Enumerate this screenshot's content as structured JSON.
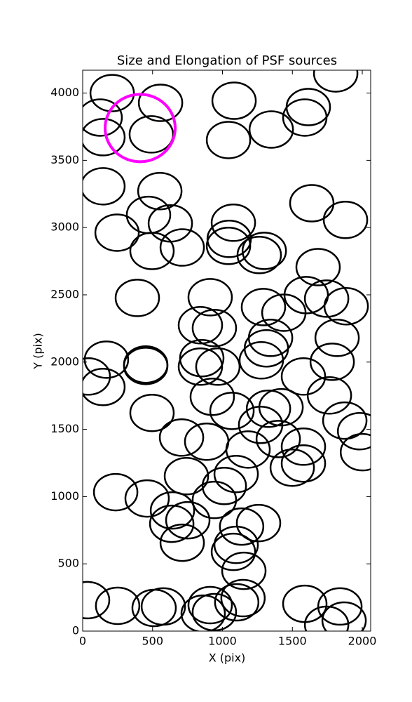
{
  "chart_data": {
    "type": "scatter",
    "title": "Size and Elongation of PSF sources",
    "x_label": "X (pix)",
    "y_label": "Y (pix)",
    "xlim": [
      0,
      2060
    ],
    "ylim": [
      0,
      4170
    ],
    "xticks": [
      0,
      500,
      1000,
      1500,
      2000
    ],
    "yticks": [
      0,
      500,
      1000,
      1500,
      2000,
      2500,
      3000,
      3500,
      4000
    ],
    "series": [
      {
        "color": "#000000",
        "x": [
          211,
          125,
          557,
          145,
          491,
          1083,
          1043,
          1349,
          1614,
          1589,
          1810,
          145,
          552,
          471,
          627,
          246,
          496,
          712,
          1078,
          1048,
          1043,
          1263,
          1299,
          1639,
          1880,
          1684,
          391,
          912,
          842,
          942,
          1293,
          1439,
          1599,
          1745,
          1885,
          1344,
          1314,
          1278,
          1820,
          1785,
          1579,
          1765,
          170,
          451,
          451,
          40,
          145,
          852,
          842,
          967,
          927,
          1068,
          1329,
          1419,
          1273,
          1399,
          1579,
          1499,
          1579,
          1875,
          1981,
          2001,
          496,
          707,
          887,
          1183,
          1098,
          742,
          1013,
          942,
          236,
          461,
          642,
          637,
          752,
          712,
          1137,
          1258,
          1098,
          1078,
          1153,
          35,
          250,
          511,
          577,
          862,
          912,
          942,
          1102,
          1147,
          1589,
          1840,
          1745,
          1870
        ],
        "values": [
          4000,
          3818,
          3927,
          3672,
          3693,
          3943,
          3651,
          3729,
          3896,
          3818,
          4146,
          3307,
          3271,
          3094,
          3031,
          2962,
          2826,
          2852,
          3036,
          2916,
          2864,
          2796,
          2827,
          3181,
          3057,
          2706,
          2477,
          2482,
          2274,
          2253,
          2409,
          2367,
          2498,
          2472,
          2415,
          2180,
          2102,
          2013,
          2180,
          2002,
          1893,
          1752,
          2018,
          1982,
          1971,
          1893,
          1815,
          2029,
          1966,
          1966,
          1742,
          1637,
          1653,
          1664,
          1533,
          1428,
          1371,
          1215,
          1246,
          1565,
          1486,
          1330,
          1622,
          1439,
          1408,
          1350,
          1168,
          1152,
          1079,
          975,
          1033,
          986,
          897,
          798,
          824,
          657,
          777,
          803,
          641,
          589,
          448,
          230,
          188,
          172,
          183,
          130,
          193,
          141,
          214,
          245,
          203,
          183,
          47,
          78
        ]
      },
      {
        "color": "#ff00ff",
        "x": [
          411
        ],
        "values": [
          3740
        ]
      }
    ]
  }
}
